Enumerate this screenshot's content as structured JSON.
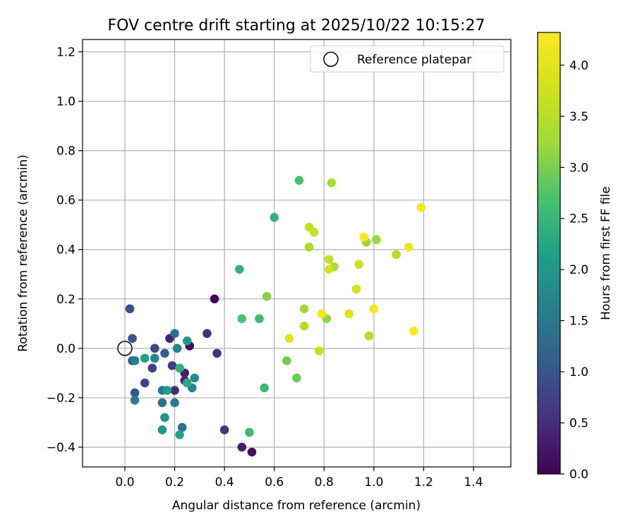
{
  "chart_data": {
    "type": "scatter",
    "title": "FOV centre drift starting at 2025/10/22 10:15:27",
    "xlabel": "Angular distance from reference (arcmin)",
    "ylabel": "Rotation from reference (arcmin)",
    "xlim": [
      -0.17,
      1.55
    ],
    "ylim": [
      -0.48,
      1.25
    ],
    "xticks": [
      0.0,
      0.2,
      0.4,
      0.6,
      0.8,
      1.0,
      1.2,
      1.4
    ],
    "xtick_labels": [
      "0.0",
      "0.2",
      "0.4",
      "0.6",
      "0.8",
      "1.0",
      "1.2",
      "1.4"
    ],
    "yticks": [
      -0.4,
      -0.2,
      0.0,
      0.2,
      0.4,
      0.6,
      0.8,
      1.0,
      1.2
    ],
    "ytick_labels": [
      "−0.4",
      "−0.2",
      "0.0",
      "0.2",
      "0.4",
      "0.6",
      "0.8",
      "1.0",
      "1.2"
    ],
    "grid": true,
    "legend": {
      "label": "Reference platepar",
      "placement": "top-right"
    },
    "reference_point": {
      "x": 0.0,
      "y": 0.0
    },
    "colorbar": {
      "label": "Hours from first FF file",
      "colormap": "viridis",
      "range": [
        0.0,
        4.32
      ],
      "ticks": [
        0.0,
        0.5,
        1.0,
        1.5,
        2.0,
        2.5,
        3.0,
        3.5,
        4.0
      ],
      "tick_labels": [
        "0.0",
        "0.5",
        "1.0",
        "1.5",
        "2.0",
        "2.5",
        "3.0",
        "3.5",
        "4.0"
      ]
    },
    "points": [
      {
        "x": 0.36,
        "y": 0.2,
        "h": 0.05
      },
      {
        "x": 0.26,
        "y": 0.01,
        "h": 0.1
      },
      {
        "x": 0.51,
        "y": -0.42,
        "h": 0.15
      },
      {
        "x": 0.47,
        "y": -0.4,
        "h": 0.3
      },
      {
        "x": 0.24,
        "y": -0.1,
        "h": 0.35
      },
      {
        "x": 0.24,
        "y": -0.13,
        "h": 0.4
      },
      {
        "x": 0.18,
        "y": 0.04,
        "h": 0.4
      },
      {
        "x": 0.2,
        "y": -0.17,
        "h": 0.45
      },
      {
        "x": 0.33,
        "y": 0.06,
        "h": 0.5
      },
      {
        "x": 0.37,
        "y": -0.02,
        "h": 0.55
      },
      {
        "x": 0.4,
        "y": -0.33,
        "h": 0.6
      },
      {
        "x": 0.19,
        "y": -0.07,
        "h": 0.65
      },
      {
        "x": 0.11,
        "y": -0.08,
        "h": 0.75
      },
      {
        "x": 0.08,
        "y": -0.14,
        "h": 0.8
      },
      {
        "x": 0.12,
        "y": 0.0,
        "h": 0.85
      },
      {
        "x": 0.02,
        "y": 0.16,
        "h": 0.95
      },
      {
        "x": 0.03,
        "y": 0.04,
        "h": 1.0
      },
      {
        "x": 0.04,
        "y": -0.18,
        "h": 1.0
      },
      {
        "x": 0.03,
        "y": -0.05,
        "h": 1.05
      },
      {
        "x": 0.16,
        "y": -0.02,
        "h": 1.1
      },
      {
        "x": 0.15,
        "y": -0.22,
        "h": 1.3
      },
      {
        "x": 0.2,
        "y": 0.06,
        "h": 1.35
      },
      {
        "x": 0.23,
        "y": -0.32,
        "h": 1.4
      },
      {
        "x": 0.2,
        "y": -0.22,
        "h": 1.5
      },
      {
        "x": 0.15,
        "y": -0.17,
        "h": 1.55
      },
      {
        "x": 0.04,
        "y": -0.21,
        "h": 1.6
      },
      {
        "x": 0.04,
        "y": -0.05,
        "h": 1.6
      },
      {
        "x": 0.12,
        "y": -0.04,
        "h": 1.7
      },
      {
        "x": 0.21,
        "y": 0.0,
        "h": 1.7
      },
      {
        "x": 0.27,
        "y": -0.16,
        "h": 1.75
      },
      {
        "x": 0.28,
        "y": -0.12,
        "h": 1.8
      },
      {
        "x": 0.16,
        "y": -0.28,
        "h": 1.9
      },
      {
        "x": 0.15,
        "y": -0.33,
        "h": 1.95
      },
      {
        "x": 0.25,
        "y": 0.03,
        "h": 2.0
      },
      {
        "x": 0.17,
        "y": -0.17,
        "h": 2.1
      },
      {
        "x": 0.08,
        "y": -0.04,
        "h": 2.15
      },
      {
        "x": 0.22,
        "y": -0.35,
        "h": 2.2
      },
      {
        "x": 0.25,
        "y": -0.14,
        "h": 2.3
      },
      {
        "x": 0.22,
        "y": -0.08,
        "h": 2.4
      },
      {
        "x": 0.46,
        "y": 0.32,
        "h": 2.4
      },
      {
        "x": 0.6,
        "y": 0.53,
        "h": 2.45
      },
      {
        "x": 0.56,
        "y": -0.16,
        "h": 2.55
      },
      {
        "x": 0.5,
        "y": -0.34,
        "h": 2.55
      },
      {
        "x": 0.54,
        "y": 0.12,
        "h": 2.6
      },
      {
        "x": 0.7,
        "y": 0.68,
        "h": 2.65
      },
      {
        "x": 0.47,
        "y": 0.12,
        "h": 2.7
      },
      {
        "x": 0.69,
        "y": -0.12,
        "h": 2.9
      },
      {
        "x": 0.65,
        "y": -0.05,
        "h": 2.95
      },
      {
        "x": 0.57,
        "y": 0.21,
        "h": 3.05
      },
      {
        "x": 0.81,
        "y": 0.12,
        "h": 3.15
      },
      {
        "x": 0.97,
        "y": 0.43,
        "h": 3.2
      },
      {
        "x": 1.01,
        "y": 0.44,
        "h": 3.2
      },
      {
        "x": 0.72,
        "y": 0.16,
        "h": 3.25
      },
      {
        "x": 0.84,
        "y": 0.33,
        "h": 3.3
      },
      {
        "x": 0.83,
        "y": 0.67,
        "h": 3.3
      },
      {
        "x": 0.74,
        "y": 0.41,
        "h": 3.4
      },
      {
        "x": 0.98,
        "y": 0.05,
        "h": 3.4
      },
      {
        "x": 1.09,
        "y": 0.38,
        "h": 3.5
      },
      {
        "x": 0.72,
        "y": 0.09,
        "h": 3.5
      },
      {
        "x": 0.82,
        "y": 0.36,
        "h": 3.6
      },
      {
        "x": 0.76,
        "y": 0.47,
        "h": 3.6
      },
      {
        "x": 0.74,
        "y": 0.49,
        "h": 3.65
      },
      {
        "x": 0.78,
        "y": -0.01,
        "h": 3.7
      },
      {
        "x": 0.94,
        "y": 0.34,
        "h": 3.75
      },
      {
        "x": 0.82,
        "y": 0.32,
        "h": 3.8
      },
      {
        "x": 0.93,
        "y": 0.24,
        "h": 3.85
      },
      {
        "x": 0.9,
        "y": 0.14,
        "h": 3.9
      },
      {
        "x": 0.66,
        "y": 0.04,
        "h": 4.0
      },
      {
        "x": 1.14,
        "y": 0.41,
        "h": 4.1
      },
      {
        "x": 1.19,
        "y": 0.57,
        "h": 4.2
      },
      {
        "x": 0.79,
        "y": 0.14,
        "h": 4.25
      },
      {
        "x": 1.0,
        "y": 0.16,
        "h": 4.25
      },
      {
        "x": 0.96,
        "y": 0.45,
        "h": 4.3
      },
      {
        "x": 1.16,
        "y": 0.07,
        "h": 4.32
      }
    ]
  }
}
